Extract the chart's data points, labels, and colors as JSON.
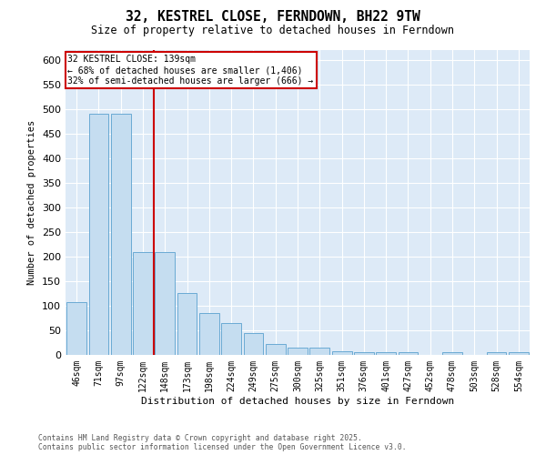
{
  "title": "32, KESTREL CLOSE, FERNDOWN, BH22 9TW",
  "subtitle": "Size of property relative to detached houses in Ferndown",
  "xlabel": "Distribution of detached houses by size in Ferndown",
  "ylabel": "Number of detached properties",
  "footer_line1": "Contains HM Land Registry data © Crown copyright and database right 2025.",
  "footer_line2": "Contains public sector information licensed under the Open Government Licence v3.0.",
  "categories": [
    "46sqm",
    "71sqm",
    "97sqm",
    "122sqm",
    "148sqm",
    "173sqm",
    "198sqm",
    "224sqm",
    "249sqm",
    "275sqm",
    "300sqm",
    "325sqm",
    "351sqm",
    "376sqm",
    "401sqm",
    "427sqm",
    "452sqm",
    "478sqm",
    "503sqm",
    "528sqm",
    "554sqm"
  ],
  "values": [
    107,
    490,
    490,
    210,
    210,
    125,
    85,
    65,
    45,
    22,
    15,
    15,
    8,
    5,
    5,
    5,
    0,
    5,
    0,
    5,
    5
  ],
  "bar_color": "#c5ddf0",
  "bar_edge_color": "#6aaad4",
  "background_color": "#ddeaf7",
  "annotation_line1": "32 KESTREL CLOSE: 139sqm",
  "annotation_line2": "← 68% of detached houses are smaller (1,406)",
  "annotation_line3": "32% of semi-detached houses are larger (666) →",
  "vline_color": "#cc0000",
  "annotation_box_facecolor": "#ffffff",
  "annotation_box_edgecolor": "#cc0000",
  "ylim": [
    0,
    620
  ],
  "yticks": [
    0,
    50,
    100,
    150,
    200,
    250,
    300,
    350,
    400,
    450,
    500,
    550,
    600
  ],
  "vline_x": 3.5
}
